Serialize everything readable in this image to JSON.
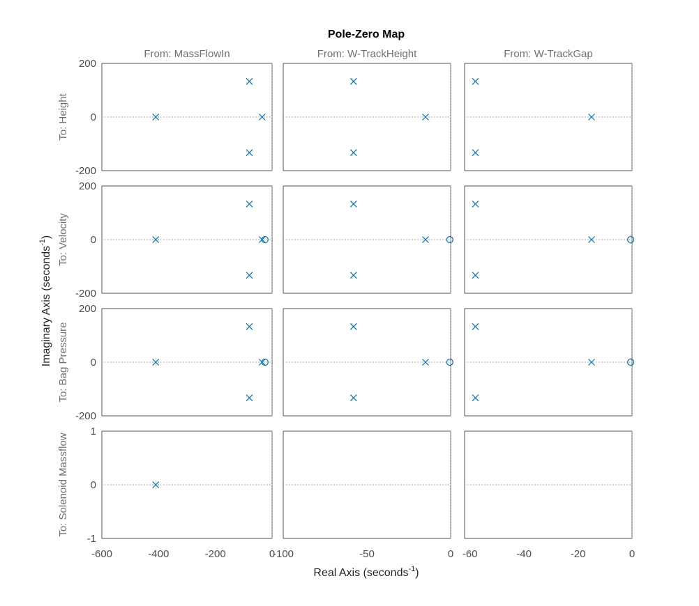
{
  "chart_data": {
    "type": "scatter",
    "title": "Pole-Zero Map",
    "xlabel": "Real Axis (seconds",
    "ylabel": "Imaginary Axis (seconds",
    "axis_unit_exponent": "-1",
    "grid": false,
    "columns": [
      {
        "title": "From: MassFlowIn",
        "xlim": [
          -600,
          0
        ],
        "xticks": [
          -600,
          -400,
          -200,
          0
        ],
        "xtick_labels": [
          "-600",
          "-400",
          "-200",
          "0"
        ]
      },
      {
        "title": "From: W-TrackHeight",
        "xlim": [
          -100,
          0
        ],
        "xticks": [
          -100,
          -50,
          0
        ],
        "xtick_labels": [
          "-100",
          "-50",
          "0"
        ]
      },
      {
        "title": "From: W-TrackGap",
        "xlim": [
          -62,
          0
        ],
        "xticks": [
          -60,
          -40,
          -20,
          0
        ],
        "xtick_labels": [
          "-60",
          "-40",
          "-20",
          "0"
        ]
      }
    ],
    "rows": [
      {
        "label": "To: Height",
        "ylim": [
          -200,
          200
        ],
        "yticks": [
          -200,
          0,
          200
        ],
        "ytick_labels": [
          "-200",
          "0",
          "200"
        ]
      },
      {
        "label": "To: Velocity",
        "ylim": [
          -200,
          200
        ],
        "yticks": [
          -200,
          0,
          200
        ],
        "ytick_labels": [
          "-200",
          "0",
          "200"
        ]
      },
      {
        "label": "To: Bag Pressure",
        "ylim": [
          -200,
          200
        ],
        "yticks": [
          -200,
          0,
          200
        ],
        "ytick_labels": [
          "-200",
          "0",
          "200"
        ]
      },
      {
        "label": "To: Solenoid Massflow",
        "ylim": [
          -1,
          1
        ],
        "yticks": [
          -1,
          0,
          1
        ],
        "ytick_labels": [
          "-1",
          "0",
          "1"
        ]
      }
    ],
    "subplots": [
      {
        "row": 0,
        "col": 0,
        "poles": [
          [
            -410,
            0
          ],
          [
            -80,
            133
          ],
          [
            -80,
            -133
          ],
          [
            -35,
            0
          ]
        ],
        "zeros": []
      },
      {
        "row": 0,
        "col": 1,
        "poles": [
          [
            -58,
            133
          ],
          [
            -58,
            -133
          ],
          [
            -15,
            0
          ]
        ],
        "zeros": []
      },
      {
        "row": 0,
        "col": 2,
        "poles": [
          [
            -58,
            133
          ],
          [
            -58,
            -133
          ],
          [
            -15,
            0
          ]
        ],
        "zeros": []
      },
      {
        "row": 1,
        "col": 0,
        "poles": [
          [
            -410,
            0
          ],
          [
            -80,
            133
          ],
          [
            -80,
            -133
          ],
          [
            -35,
            0
          ]
        ],
        "zeros": [
          [
            -25,
            0
          ]
        ]
      },
      {
        "row": 1,
        "col": 1,
        "poles": [
          [
            -58,
            133
          ],
          [
            -58,
            -133
          ],
          [
            -15,
            0
          ]
        ],
        "zeros": [
          [
            -0.5,
            0
          ]
        ]
      },
      {
        "row": 1,
        "col": 2,
        "poles": [
          [
            -58,
            133
          ],
          [
            -58,
            -133
          ],
          [
            -15,
            0
          ]
        ],
        "zeros": [
          [
            -0.5,
            0
          ]
        ]
      },
      {
        "row": 2,
        "col": 0,
        "poles": [
          [
            -410,
            0
          ],
          [
            -80,
            133
          ],
          [
            -80,
            -133
          ],
          [
            -35,
            0
          ]
        ],
        "zeros": [
          [
            -25,
            0
          ]
        ]
      },
      {
        "row": 2,
        "col": 1,
        "poles": [
          [
            -58,
            133
          ],
          [
            -58,
            -133
          ],
          [
            -15,
            0
          ]
        ],
        "zeros": [
          [
            -0.5,
            0
          ]
        ]
      },
      {
        "row": 2,
        "col": 2,
        "poles": [
          [
            -58,
            133
          ],
          [
            -58,
            -133
          ],
          [
            -15,
            0
          ]
        ],
        "zeros": [
          [
            -0.5,
            0
          ]
        ]
      },
      {
        "row": 3,
        "col": 0,
        "poles": [
          [
            -410,
            0
          ]
        ],
        "zeros": []
      },
      {
        "row": 3,
        "col": 1,
        "poles": [],
        "zeros": []
      },
      {
        "row": 3,
        "col": 2,
        "poles": [],
        "zeros": []
      }
    ],
    "colors": {
      "marker": "#0072bd",
      "frame": "#262626",
      "text": "#4d4d4d",
      "label": "#707070"
    }
  }
}
